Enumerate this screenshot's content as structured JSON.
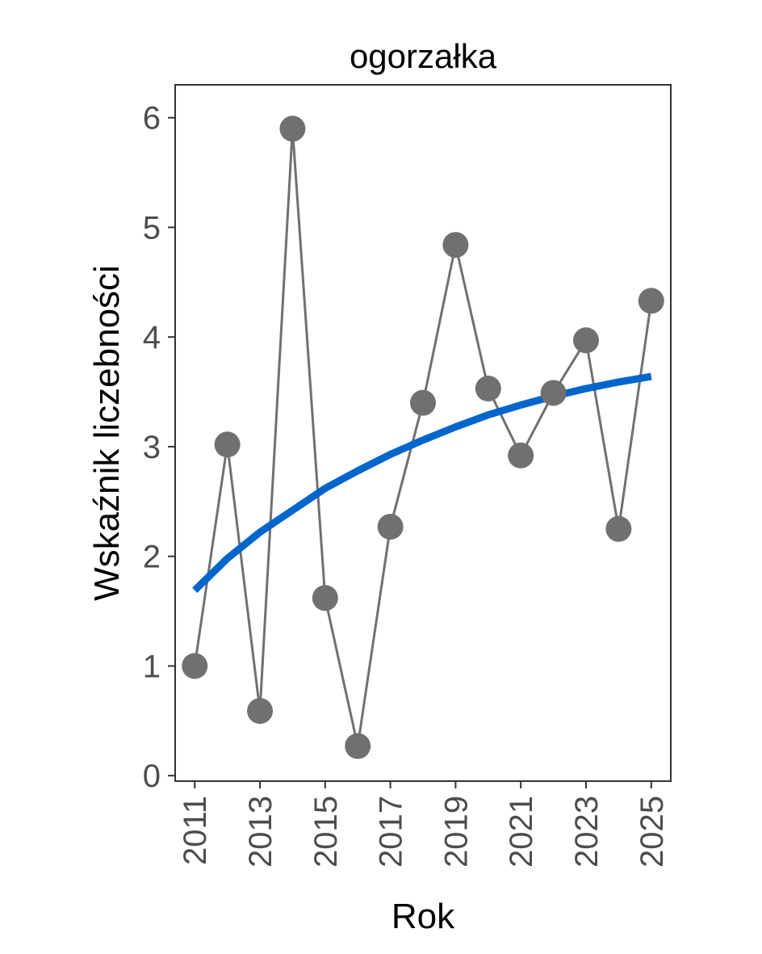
{
  "chart_data": {
    "type": "line",
    "title": "ogorzałka",
    "xlabel": "Rok",
    "ylabel": "Wskaźnik liczebności",
    "xlim": [
      2010.4,
      2025.6
    ],
    "ylim": [
      -0.05,
      6.3
    ],
    "x_ticks": [
      2011,
      2013,
      2015,
      2017,
      2019,
      2021,
      2023,
      2025
    ],
    "x_tick_labels": [
      "2011",
      "2013",
      "2015",
      "2017",
      "2019",
      "2021",
      "2023",
      "2025"
    ],
    "y_ticks": [
      0,
      1,
      2,
      3,
      4,
      5,
      6
    ],
    "y_tick_labels": [
      "0",
      "1",
      "2",
      "3",
      "4",
      "5",
      "6"
    ],
    "grid": false,
    "series": [
      {
        "kind": "observed",
        "color": "#707070",
        "x": [
          2011,
          2012,
          2013,
          2014,
          2015,
          2016,
          2017,
          2018,
          2019,
          2020,
          2021,
          2022,
          2023,
          2024,
          2025
        ],
        "y": [
          1.0,
          3.02,
          0.59,
          5.9,
          1.62,
          0.27,
          2.27,
          3.4,
          4.84,
          3.53,
          2.92,
          3.49,
          3.97,
          2.25,
          4.33
        ]
      },
      {
        "kind": "trend",
        "color": "#0066cc",
        "x": [
          2011,
          2012,
          2013,
          2014,
          2015,
          2016,
          2017,
          2018,
          2019,
          2020,
          2021,
          2022,
          2023,
          2024,
          2025
        ],
        "y": [
          1.69,
          1.98,
          2.22,
          2.42,
          2.62,
          2.78,
          2.93,
          3.06,
          3.18,
          3.29,
          3.38,
          3.46,
          3.53,
          3.59,
          3.64
        ]
      }
    ]
  }
}
